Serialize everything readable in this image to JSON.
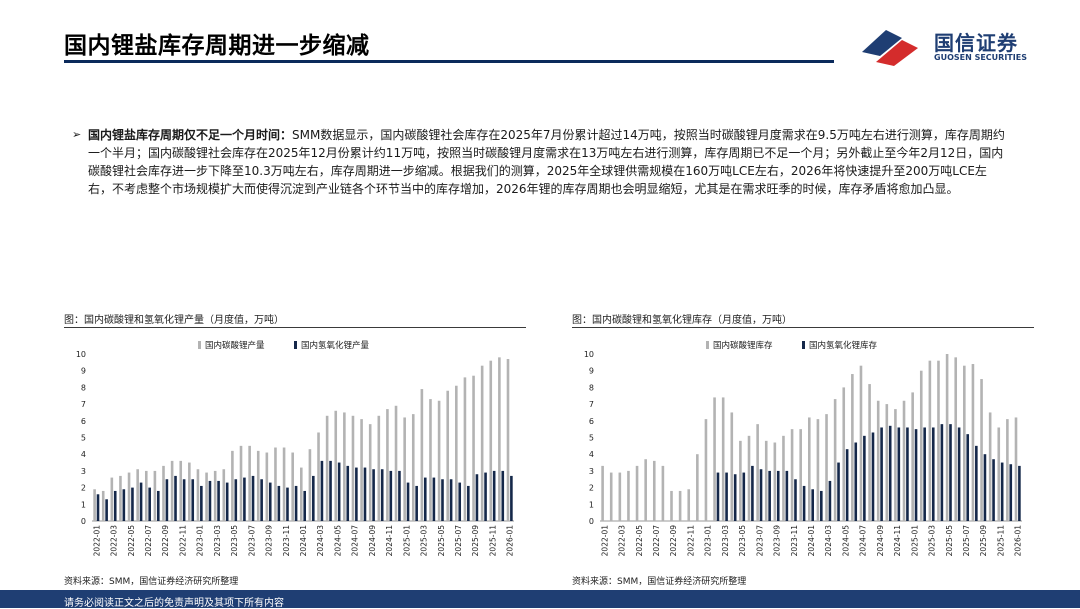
{
  "header": {
    "title": "国内锂盐库存周期进一步缩减",
    "logo_cn": "国信证券",
    "logo_en": "GUOSEN SECURITIES"
  },
  "bullet": {
    "lead": "国内锂盐库存周期仅不足一个月时间：",
    "body": "SMM数据显示，国内碳酸锂社会库存在2025年7月份累计超过14万吨，按照当时碳酸锂月度需求在9.5万吨左右进行测算，库存周期约一个半月；国内碳酸锂社会库存在2025年12月份累计约11万吨，按照当时碳酸锂月度需求在13万吨左右进行测算，库存周期已不足一个月；另外截止至今年2月12日，国内碳酸锂社会库存进一步下降至10.3万吨左右，库存周期进一步缩减。根据我们的测算，2025年全球锂供需规模在160万吨LCE左右，2026年将快速提升至200万吨LCE左右，不考虑整个市场规模扩大而使得沉淀到产业链各个环节当中的库存增加，2026年锂的库存周期也会明显缩短，尤其是在需求旺季的时候，库存矛盾将愈加凸显。"
  },
  "charts": {
    "left": {
      "caption": "图：国内碳酸锂和氢氧化锂产量（月度值，万吨）",
      "source": "资料来源：SMM，国信证券经济研究所整理"
    },
    "right": {
      "caption": "图：国内碳酸锂和氢氧化锂库存（月度值，万吨）",
      "source": "资料来源：SMM，国信证券经济研究所整理"
    }
  },
  "footer": {
    "text": "请务必阅读正文之后的免责声明及其项下所有内容"
  },
  "colors": {
    "navy": "#1f3e73",
    "red": "#d42c2c",
    "gray_bar": "#b3b3b3",
    "dark_bar": "#15284a"
  },
  "chart_data": [
    {
      "type": "bar",
      "categories": [
        "2022-01",
        "2022-02",
        "2022-03",
        "2022-04",
        "2022-05",
        "2022-06",
        "2022-07",
        "2022-08",
        "2022-09",
        "2022-10",
        "2022-11",
        "2022-12",
        "2023-01",
        "2023-02",
        "2023-03",
        "2023-04",
        "2023-05",
        "2023-06",
        "2023-07",
        "2023-08",
        "2023-09",
        "2023-10",
        "2023-11",
        "2023-12",
        "2024-01",
        "2024-02",
        "2024-03",
        "2024-04",
        "2024-05",
        "2024-06",
        "2024-07",
        "2024-08",
        "2024-09",
        "2024-10",
        "2024-11",
        "2024-12",
        "2025-01",
        "2025-02",
        "2025-03",
        "2025-04",
        "2025-05",
        "2025-06",
        "2025-07",
        "2025-08",
        "2025-09",
        "2025-10",
        "2025-11",
        "2025-12",
        "2026-01"
      ],
      "tick_labels": [
        "2022-01",
        "2022-03",
        "2022-05",
        "2022-07",
        "2022-09",
        "2022-11",
        "2023-01",
        "2023-03",
        "2023-05",
        "2023-07",
        "2023-09",
        "2023-11",
        "2024-01",
        "2024-03",
        "2024-05",
        "2024-07",
        "2024-09",
        "2024-11",
        "2025-01",
        "2025-03",
        "2025-05",
        "2025-07",
        "2025-09",
        "2025-11",
        "2026-01"
      ],
      "series": [
        {
          "name": "国内碳酸锂产量",
          "values": [
            1.9,
            1.8,
            2.6,
            2.7,
            2.9,
            3.1,
            3.0,
            3.0,
            3.3,
            3.6,
            3.6,
            3.5,
            3.1,
            2.9,
            3.0,
            3.1,
            4.2,
            4.5,
            4.5,
            4.2,
            4.1,
            4.4,
            4.4,
            4.1,
            3.2,
            4.3,
            5.3,
            6.3,
            6.6,
            6.5,
            6.3,
            6.1,
            5.8,
            6.3,
            6.7,
            6.9,
            6.2,
            6.4,
            7.9,
            7.3,
            7.2,
            7.8,
            8.1,
            8.6,
            8.7,
            9.3,
            9.6,
            9.8,
            9.7
          ]
        },
        {
          "name": "国内氢氧化锂产量",
          "values": [
            1.6,
            1.3,
            1.8,
            1.9,
            2.0,
            2.3,
            2.0,
            1.8,
            2.5,
            2.7,
            2.5,
            2.5,
            2.1,
            2.4,
            2.4,
            2.3,
            2.5,
            2.6,
            2.7,
            2.5,
            2.3,
            2.1,
            2.0,
            2.1,
            1.8,
            2.7,
            3.6,
            3.6,
            3.5,
            3.3,
            3.2,
            3.2,
            3.1,
            3.1,
            3.0,
            3.0,
            2.3,
            2.1,
            2.6,
            2.6,
            2.5,
            2.5,
            2.3,
            2.1,
            2.8,
            2.9,
            3.0,
            3.0,
            2.7
          ]
        }
      ],
      "ylim": [
        0,
        10
      ],
      "yticks": [
        0,
        1,
        2,
        3,
        4,
        5,
        6,
        7,
        8,
        9,
        10
      ],
      "legend": "top"
    },
    {
      "type": "bar",
      "categories": [
        "2022-01",
        "2022-02",
        "2022-03",
        "2022-04",
        "2022-05",
        "2022-06",
        "2022-07",
        "2022-08",
        "2022-09",
        "2022-10",
        "2022-11",
        "2022-12",
        "2023-01",
        "2023-02",
        "2023-03",
        "2023-04",
        "2023-05",
        "2023-06",
        "2023-07",
        "2023-08",
        "2023-09",
        "2023-10",
        "2023-11",
        "2023-12",
        "2024-01",
        "2024-02",
        "2024-03",
        "2024-04",
        "2024-05",
        "2024-06",
        "2024-07",
        "2024-08",
        "2024-09",
        "2024-10",
        "2024-11",
        "2024-12",
        "2025-01",
        "2025-02",
        "2025-03",
        "2025-04",
        "2025-05",
        "2025-06",
        "2025-07",
        "2025-08",
        "2025-09",
        "2025-10",
        "2025-11",
        "2025-12",
        "2026-01"
      ],
      "tick_labels": [
        "2022-01",
        "2022-03",
        "2022-05",
        "2022-07",
        "2022-09",
        "2022-11",
        "2023-01",
        "2023-03",
        "2023-05",
        "2023-07",
        "2023-09",
        "2023-11",
        "2024-01",
        "2024-03",
        "2024-05",
        "2024-07",
        "2024-09",
        "2024-11",
        "2025-01",
        "2025-03",
        "2025-05",
        "2025-07",
        "2025-09",
        "2025-11",
        "2026-01"
      ],
      "series": [
        {
          "name": "国内碳酸锂库存",
          "values": [
            3.3,
            2.9,
            2.9,
            3.0,
            3.3,
            3.7,
            3.6,
            3.3,
            1.8,
            1.8,
            1.9,
            4.0,
            6.1,
            7.4,
            7.4,
            6.5,
            4.8,
            5.1,
            5.8,
            4.8,
            4.7,
            5.1,
            5.5,
            5.5,
            6.2,
            6.1,
            6.4,
            7.3,
            8.0,
            8.8,
            9.3,
            8.2,
            7.2,
            7.0,
            6.7,
            7.2,
            7.7,
            9.0,
            9.6,
            9.6,
            10.0,
            9.8,
            9.3,
            9.4,
            8.5,
            6.5,
            5.6,
            6.1,
            6.2
          ]
        },
        {
          "name": "国内氢氧化锂库存",
          "values": [
            0,
            0,
            0,
            0,
            0,
            0,
            0,
            0,
            0,
            0,
            0,
            0,
            0,
            2.9,
            2.9,
            2.8,
            2.9,
            3.3,
            3.1,
            3.0,
            3.0,
            3.0,
            2.5,
            2.1,
            1.9,
            1.8,
            2.4,
            3.5,
            4.3,
            4.7,
            5.1,
            5.3,
            5.6,
            5.7,
            5.6,
            5.6,
            5.5,
            5.6,
            5.6,
            5.8,
            5.8,
            5.6,
            5.2,
            4.5,
            4.0,
            3.7,
            3.5,
            3.4,
            3.3
          ]
        }
      ],
      "ylim": [
        0,
        10
      ],
      "yticks": [
        0,
        1,
        2,
        3,
        4,
        5,
        6,
        7,
        8,
        9,
        10
      ],
      "legend": "top"
    }
  ]
}
